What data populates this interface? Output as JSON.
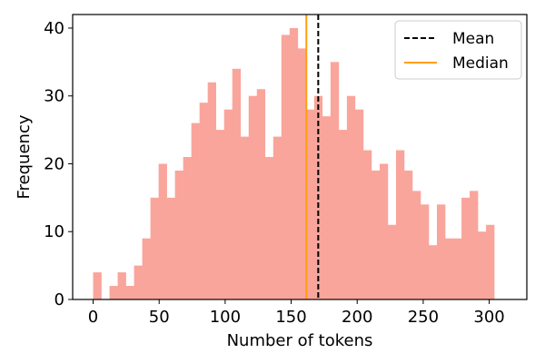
{
  "chart_data": {
    "type": "bar",
    "subtype": "histogram",
    "title": "",
    "xlabel": "Number of tokens",
    "ylabel": "Frequency",
    "xlim": [
      -15.5,
      328.5
    ],
    "ylim": [
      0,
      42
    ],
    "xticks": [
      0,
      50,
      100,
      150,
      200,
      250,
      300
    ],
    "yticks": [
      0,
      10,
      20,
      30,
      40
    ],
    "grid": false,
    "bar_color": "#f9a59b",
    "bin_width": 6.2,
    "bin_edges_start": 0,
    "bin_values": [
      4,
      0,
      2,
      4,
      2,
      5,
      9,
      15,
      20,
      15,
      19,
      21,
      26,
      29,
      32,
      25,
      28,
      34,
      24,
      30,
      31,
      21,
      24,
      39,
      40,
      37,
      28,
      30,
      27,
      35,
      25,
      30,
      28,
      22,
      19,
      20,
      11,
      22,
      19,
      16,
      14,
      8,
      14,
      9,
      9,
      15,
      16,
      10,
      11
    ],
    "mean": 170.5,
    "median": 161.5,
    "legend": {
      "position": "top-right",
      "entries": [
        {
          "label": "Mean",
          "color": "#000000",
          "style": "dashed"
        },
        {
          "label": "Median",
          "color": "#ff9f0e",
          "style": "solid"
        }
      ]
    }
  }
}
